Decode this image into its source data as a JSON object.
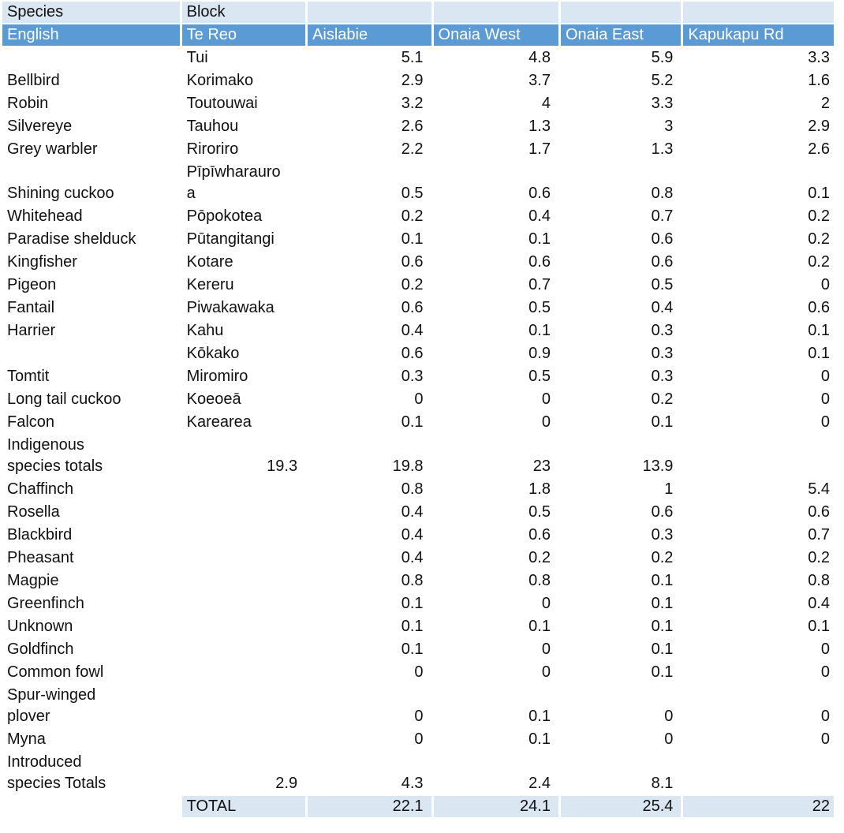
{
  "colors": {
    "header_blue": "#5b9bd5",
    "header_light": "#dbe6f3",
    "header_text": "#ffffff",
    "text": "#111111"
  },
  "table": {
    "header_group": {
      "species": "Species",
      "block": "Block"
    },
    "column_headers": [
      "English",
      "Te Reo",
      "Aislabie",
      "Onaia West",
      "Onaia East",
      "Kapukapu Rd"
    ],
    "rows": [
      {
        "type": "data",
        "cells": [
          "",
          "Tui",
          "5.1",
          "4.8",
          "5.9",
          "3.3"
        ]
      },
      {
        "type": "data",
        "cells": [
          "Bellbird",
          "Korimako",
          "2.9",
          "3.7",
          "5.2",
          "1.6"
        ]
      },
      {
        "type": "data",
        "cells": [
          "Robin",
          "Toutouwai",
          "3.2",
          "4",
          "3.3",
          "2"
        ]
      },
      {
        "type": "data",
        "cells": [
          "Silvereye",
          "Tauhou",
          "2.6",
          "1.3",
          "3",
          "2.9"
        ]
      },
      {
        "type": "data",
        "cells": [
          "Grey warbler",
          "Riroriro",
          "2.2",
          "1.7",
          "1.3",
          "2.6"
        ]
      },
      {
        "type": "data",
        "cells": [
          "Shining cuckoo",
          "Pīpīwharauro\na",
          "0.5",
          "0.6",
          "0.8",
          "0.1"
        ]
      },
      {
        "type": "data",
        "cells": [
          "Whitehead",
          "Pōpokotea",
          "0.2",
          "0.4",
          "0.7",
          "0.2"
        ]
      },
      {
        "type": "data",
        "cells": [
          "Paradise shelduck",
          "Pūtangitangi",
          "0.1",
          "0.1",
          "0.6",
          "0.2"
        ]
      },
      {
        "type": "data",
        "cells": [
          "Kingfisher",
          "Kotare",
          "0.6",
          "0.6",
          "0.6",
          "0.2"
        ]
      },
      {
        "type": "data",
        "cells": [
          "Pigeon",
          "Kereru",
          "0.2",
          "0.7",
          "0.5",
          "0"
        ]
      },
      {
        "type": "data",
        "cells": [
          "Fantail",
          "Piwakawaka",
          "0.6",
          "0.5",
          "0.4",
          "0.6"
        ]
      },
      {
        "type": "data",
        "cells": [
          "Harrier",
          "Kahu",
          "0.4",
          "0.1",
          "0.3",
          "0.1"
        ]
      },
      {
        "type": "data",
        "cells": [
          "",
          "Kōkako",
          "0.6",
          "0.9",
          "0.3",
          "0.1"
        ]
      },
      {
        "type": "data",
        "cells": [
          "Tomtit",
          "Miromiro",
          "0.3",
          "0.5",
          "0.3",
          "0"
        ]
      },
      {
        "type": "data",
        "cells": [
          "Long tail cuckoo",
          "Koeoeā",
          "0",
          "0",
          "0.2",
          "0"
        ]
      },
      {
        "type": "data",
        "cells": [
          "Falcon",
          "Karearea",
          "0.1",
          "0",
          "0.1",
          "0"
        ]
      },
      {
        "type": "totals",
        "cells": [
          "Indigenous\nspecies totals",
          "19.3",
          "19.8",
          "23",
          "13.9",
          ""
        ]
      },
      {
        "type": "data",
        "cells": [
          "Chaffinch",
          "",
          "0.8",
          "1.8",
          "1",
          "5.4"
        ]
      },
      {
        "type": "data",
        "cells": [
          "Rosella",
          "",
          "0.4",
          "0.5",
          "0.6",
          "0.6"
        ]
      },
      {
        "type": "data",
        "cells": [
          "Blackbird",
          "",
          "0.4",
          "0.6",
          "0.3",
          "0.7"
        ]
      },
      {
        "type": "data",
        "cells": [
          "Pheasant",
          "",
          "0.4",
          "0.2",
          "0.2",
          "0.2"
        ]
      },
      {
        "type": "data",
        "cells": [
          "Magpie",
          "",
          "0.8",
          "0.8",
          "0.1",
          "0.8"
        ]
      },
      {
        "type": "data",
        "cells": [
          "Greenfinch",
          "",
          "0.1",
          "0",
          "0.1",
          "0.4"
        ]
      },
      {
        "type": "data",
        "cells": [
          "Unknown",
          "",
          "0.1",
          "0.1",
          "0.1",
          "0.1"
        ]
      },
      {
        "type": "data",
        "cells": [
          "Goldfinch",
          "",
          "0.1",
          "0",
          "0.1",
          "0"
        ]
      },
      {
        "type": "data",
        "cells": [
          "Common fowl",
          "",
          "0",
          "0",
          "0.1",
          "0"
        ]
      },
      {
        "type": "data",
        "cells": [
          "Spur-winged\nplover",
          "",
          "0",
          "0.1",
          "0",
          "0"
        ]
      },
      {
        "type": "data",
        "cells": [
          "Myna",
          "",
          "0",
          "0.1",
          "0",
          "0"
        ]
      },
      {
        "type": "totals",
        "cells": [
          "Introduced\nspecies Totals",
          "2.9",
          "4.3",
          "2.4",
          "8.1",
          ""
        ]
      },
      {
        "type": "grand",
        "cells": [
          "",
          "TOTAL",
          "22.1",
          "24.1",
          "25.4",
          "22"
        ]
      }
    ]
  }
}
